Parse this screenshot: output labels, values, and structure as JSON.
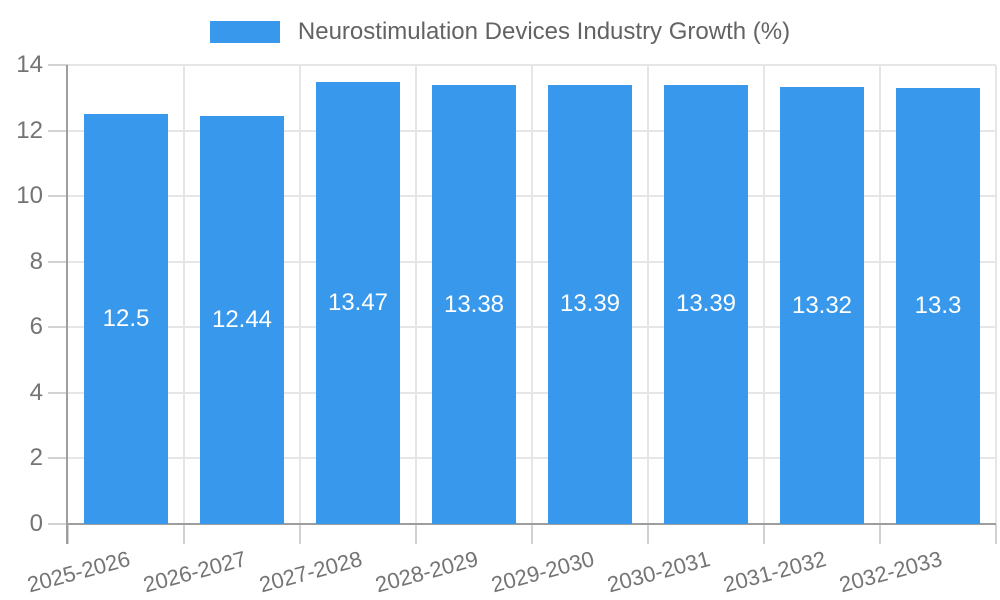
{
  "chart_data": {
    "type": "bar",
    "title": "Neurostimulation Devices Industry Growth (%)",
    "legend_position": "top",
    "legend": [
      "Neurostimulation Devices Industry Growth (%)"
    ],
    "categories": [
      "2025-2026",
      "2026-2027",
      "2027-2028",
      "2028-2029",
      "2029-2030",
      "2030-2031",
      "2031-2032",
      "2032-2033"
    ],
    "values": [
      12.5,
      12.44,
      13.47,
      13.38,
      13.39,
      13.39,
      13.32,
      13.3
    ],
    "value_labels": [
      "12.5",
      "12.44",
      "13.47",
      "13.38",
      "13.39",
      "13.39",
      "13.32",
      "13.3"
    ],
    "xlabel": "",
    "ylabel": "",
    "ylim": [
      0,
      14
    ],
    "ytick_step": 2,
    "ytick_labels": [
      "0",
      "2",
      "4",
      "6",
      "8",
      "10",
      "12",
      "14"
    ],
    "grid": true,
    "colors": {
      "bar": "#3798ec",
      "value_text": "#ffffff",
      "gridline": "#e6e6e6",
      "tick_mark": "#d2d2d2",
      "axis_line": "#9e9e9e",
      "tick_text": "#747474",
      "legend_text": "#636363",
      "background": "#ffffff"
    }
  }
}
